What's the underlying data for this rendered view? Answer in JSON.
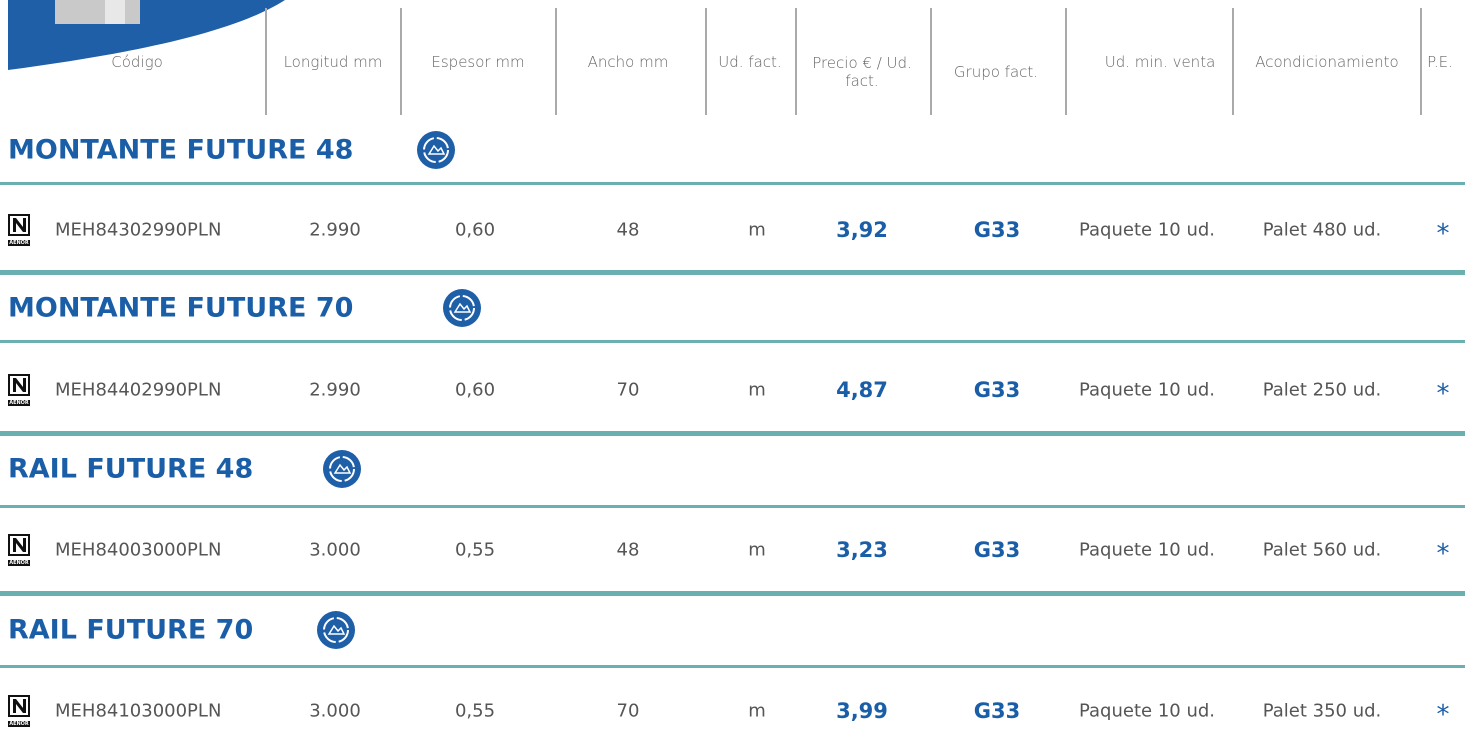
{
  "header": {
    "columns": [
      "Código",
      "Longitud mm",
      "Espesor mm",
      "Ancho mm",
      "Ud. fact.",
      "Precio € / Ud. fact.",
      "Grupo fact.",
      "Ud. min. venta",
      "Acondicionamiento",
      "P.E."
    ]
  },
  "certification": "AENOR",
  "sections": [
    {
      "title": "MONTANTE FUTURE 48",
      "rows": [
        [
          "MEH84302990PLN",
          "2.990",
          "0,60",
          "48",
          "m",
          "3,92",
          "G33",
          "Paquete 10 ud.",
          "Palet 480 ud.",
          "*"
        ]
      ]
    },
    {
      "title": "MONTANTE FUTURE 70",
      "rows": [
        [
          "MEH84402990PLN",
          "2.990",
          "0,60",
          "70",
          "m",
          "4,87",
          "G33",
          "Paquete 10 ud.",
          "Palet 250 ud.",
          "*"
        ]
      ]
    },
    {
      "title": "RAIL FUTURE 48",
      "rows": [
        [
          "MEH84003000PLN",
          "3.000",
          "0,55",
          "48",
          "m",
          "3,23",
          "G33",
          "Paquete 10 ud.",
          "Palet 560 ud.",
          "*"
        ]
      ]
    },
    {
      "title": "RAIL FUTURE 70",
      "rows": [
        [
          "MEH84103000PLN",
          "3.000",
          "0,55",
          "70",
          "m",
          "3,99",
          "G33",
          "Paquete 10 ud.",
          "Palet 350 ud.",
          "*"
        ]
      ]
    }
  ]
}
